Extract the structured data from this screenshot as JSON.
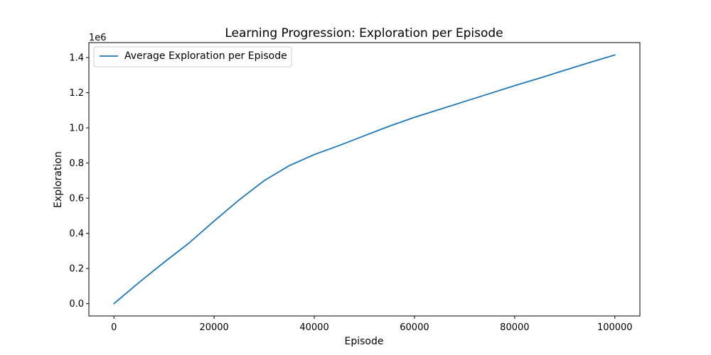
{
  "chart_data": {
    "type": "line",
    "title": "Learning Progression: Exploration per Episode",
    "xlabel": "Episode",
    "ylabel": "Exploration",
    "y_offset_label": "1e6",
    "y_scale_factor": 1000000,
    "xlim": [
      -5000,
      105000
    ],
    "ylim": [
      -70000,
      1485000
    ],
    "x_ticks": [
      0,
      20000,
      40000,
      60000,
      80000,
      100000
    ],
    "y_ticks": [
      0,
      200000,
      400000,
      600000,
      800000,
      1000000,
      1200000,
      1400000
    ],
    "x_tick_labels": [
      "0",
      "20000",
      "40000",
      "60000",
      "80000",
      "100000"
    ],
    "y_tick_labels": [
      "0.0",
      "0.2",
      "0.4",
      "0.6",
      "0.8",
      "1.0",
      "1.2",
      "1.4"
    ],
    "grid": false,
    "legend_position": "upper-left",
    "series": [
      {
        "name": "Average Exploration per Episode",
        "color": "#1f77b4",
        "x": [
          0,
          5000,
          10000,
          15000,
          20000,
          25000,
          30000,
          35000,
          40000,
          45000,
          50000,
          55000,
          60000,
          65000,
          70000,
          75000,
          80000,
          85000,
          90000,
          95000,
          100000
        ],
        "y": [
          0,
          120000,
          235000,
          345000,
          470000,
          590000,
          700000,
          785000,
          848000,
          900000,
          955000,
          1010000,
          1060000,
          1105000,
          1150000,
          1195000,
          1240000,
          1283000,
          1328000,
          1372000,
          1415000
        ]
      }
    ]
  }
}
